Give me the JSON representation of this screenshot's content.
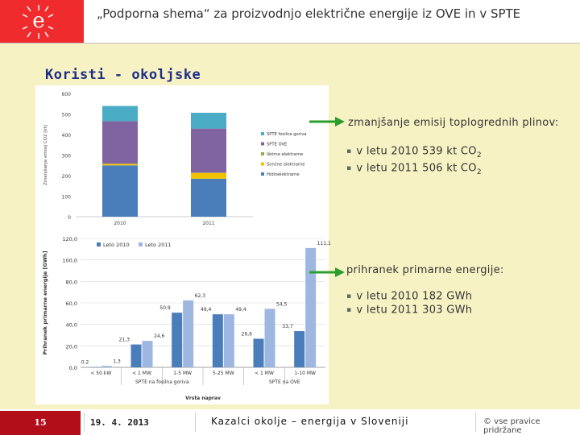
{
  "header": {
    "title": "„Podporna shema“ za proizvodnjo električne energije iz OVE in v SPTE",
    "logo_letter": "e"
  },
  "section_title": "Koristi - okoljske",
  "right_panel": {
    "block1": {
      "heading": "zmanjšanje emisij toplogrednih plinov:",
      "items": [
        {
          "text": "v letu 2010 539 kt CO",
          "sub": "2"
        },
        {
          "text": "v letu 2011 506 kt CO",
          "sub": "2"
        }
      ]
    },
    "block2": {
      "heading": "prihranek primarne energije:",
      "items": [
        {
          "text": "v letu 2010 182 GWh"
        },
        {
          "text": "v letu 2011 303 GWh"
        }
      ]
    }
  },
  "colors": {
    "accent_red": "#ef2b2d",
    "arrow_green": "#2a9d2e",
    "bar_2010": "#4a7ebb",
    "bar_2011": "#9db7e0"
  },
  "chart_data": [
    {
      "type": "bar",
      "stacked": true,
      "ylabel": "Zmanjšanje emisij CO2 [kt]",
      "ylim": [
        0,
        600
      ],
      "yticks": [
        "0",
        "100",
        "200",
        "300",
        "400",
        "500",
        "600"
      ],
      "categories": [
        "2010",
        "2011"
      ],
      "series": [
        {
          "name": "Hidroelektrarne",
          "color": "#4a7ebb",
          "values": [
            250,
            185
          ]
        },
        {
          "name": "Sončne elektrarne",
          "color": "#f2c200",
          "values": [
            7,
            28
          ]
        },
        {
          "name": "Vetrne elektrarne",
          "color": "#8ab04a",
          "values": [
            1,
            1
          ]
        },
        {
          "name": "SPTE OVE",
          "color": "#8064a2",
          "values": [
            207,
            215
          ]
        },
        {
          "name": "SPTE fosilna goriva",
          "color": "#4bacc6",
          "values": [
            74,
            77
          ]
        }
      ],
      "legend_order": [
        "SPTE fosilna goriva",
        "SPTE OVE",
        "Vetrne elektrarne",
        "Sončne elektrarne",
        "Hidroelektrarne"
      ],
      "legend_position": "right"
    },
    {
      "type": "bar",
      "ylabel": "Prihranek primarne energije [GWh]",
      "xlabel": "Vrsta naprav",
      "ylim": [
        0,
        120
      ],
      "yticks": [
        "0,0",
        "20,0",
        "40,0",
        "60,0",
        "80,0",
        "100,0",
        "120,0"
      ],
      "categories": [
        "< 50 kW",
        "< 1 MW",
        "1-5 MW",
        "5-25 MW",
        "< 1 MW",
        "1-10 MW"
      ],
      "groups": [
        {
          "label": "SPTE na fosilna goriva",
          "span": [
            0,
            3
          ]
        },
        {
          "label": "SPTE na OVE",
          "span": [
            4,
            5
          ]
        }
      ],
      "series": [
        {
          "name": "Leto 2010",
          "color": "#4a7ebb",
          "values": [
            0.2,
            21.3,
            50.9,
            49.4,
            26.6,
            33.7
          ],
          "labels": [
            "0,2",
            "21,3",
            "50,9",
            "49,4",
            "26,6",
            "33,7"
          ]
        },
        {
          "name": "Leto 2011",
          "color": "#9db7e0",
          "values": [
            1.3,
            24.6,
            62.3,
            49.4,
            54.5,
            111.1
          ],
          "labels": [
            "1,3",
            "24,6",
            "62,3",
            "49,4",
            "54,5",
            "111,1"
          ]
        }
      ],
      "legend_position": "top-left",
      "grid": true
    }
  ],
  "footer": {
    "page": "15",
    "date": "19. 4. 2013",
    "source": "Kazalci okolje – energija v Sloveniji",
    "copyright": "© vse pravice pridržane"
  }
}
